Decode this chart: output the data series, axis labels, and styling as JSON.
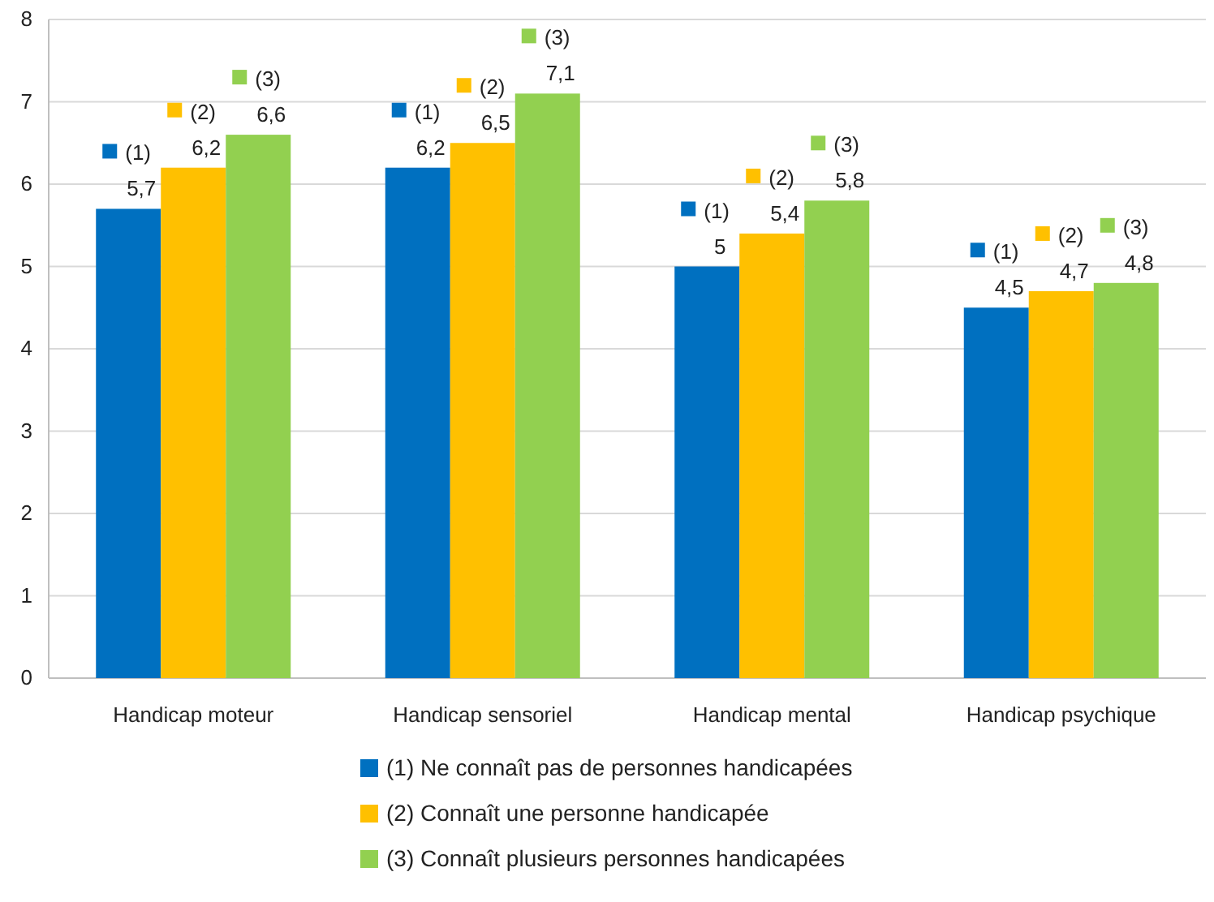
{
  "chart_data": {
    "type": "bar",
    "categories": [
      "Handicap moteur",
      "Handicap sensoriel",
      "Handicap mental",
      "Handicap psychique"
    ],
    "series": [
      {
        "name": "(1) Ne connaît pas de personnes handicapées",
        "color": "#0070c0",
        "values": [
          5.7,
          6.2,
          5,
          4.5
        ],
        "value_labels": [
          "5,7",
          "6,2",
          "5",
          "4,5"
        ]
      },
      {
        "name": "(2) Connaît une personne handicapée",
        "color": "#ffc000",
        "values": [
          6.2,
          6.5,
          5.4,
          4.7
        ],
        "value_labels": [
          "6,2",
          "6,5",
          "5,4",
          "4,7"
        ]
      },
      {
        "name": "(3) Connaît plusieurs personnes handicapées",
        "color": "#92d050",
        "values": [
          6.6,
          7.1,
          5.8,
          4.8
        ],
        "value_labels": [
          "6,6",
          "7,1",
          "5,8",
          "4,8"
        ]
      }
    ],
    "annotations": [
      "(1)",
      "(2)",
      "(3)",
      "(1)",
      "(2)",
      "(3)",
      "(1)",
      "(2)",
      "(3)",
      "(1)",
      "(2)",
      "(3)"
    ],
    "ylim": [
      0,
      8
    ],
    "yticks": [
      0,
      1,
      2,
      3,
      4,
      5,
      6,
      7,
      8
    ],
    "grid": "y",
    "legend": "bottom"
  }
}
